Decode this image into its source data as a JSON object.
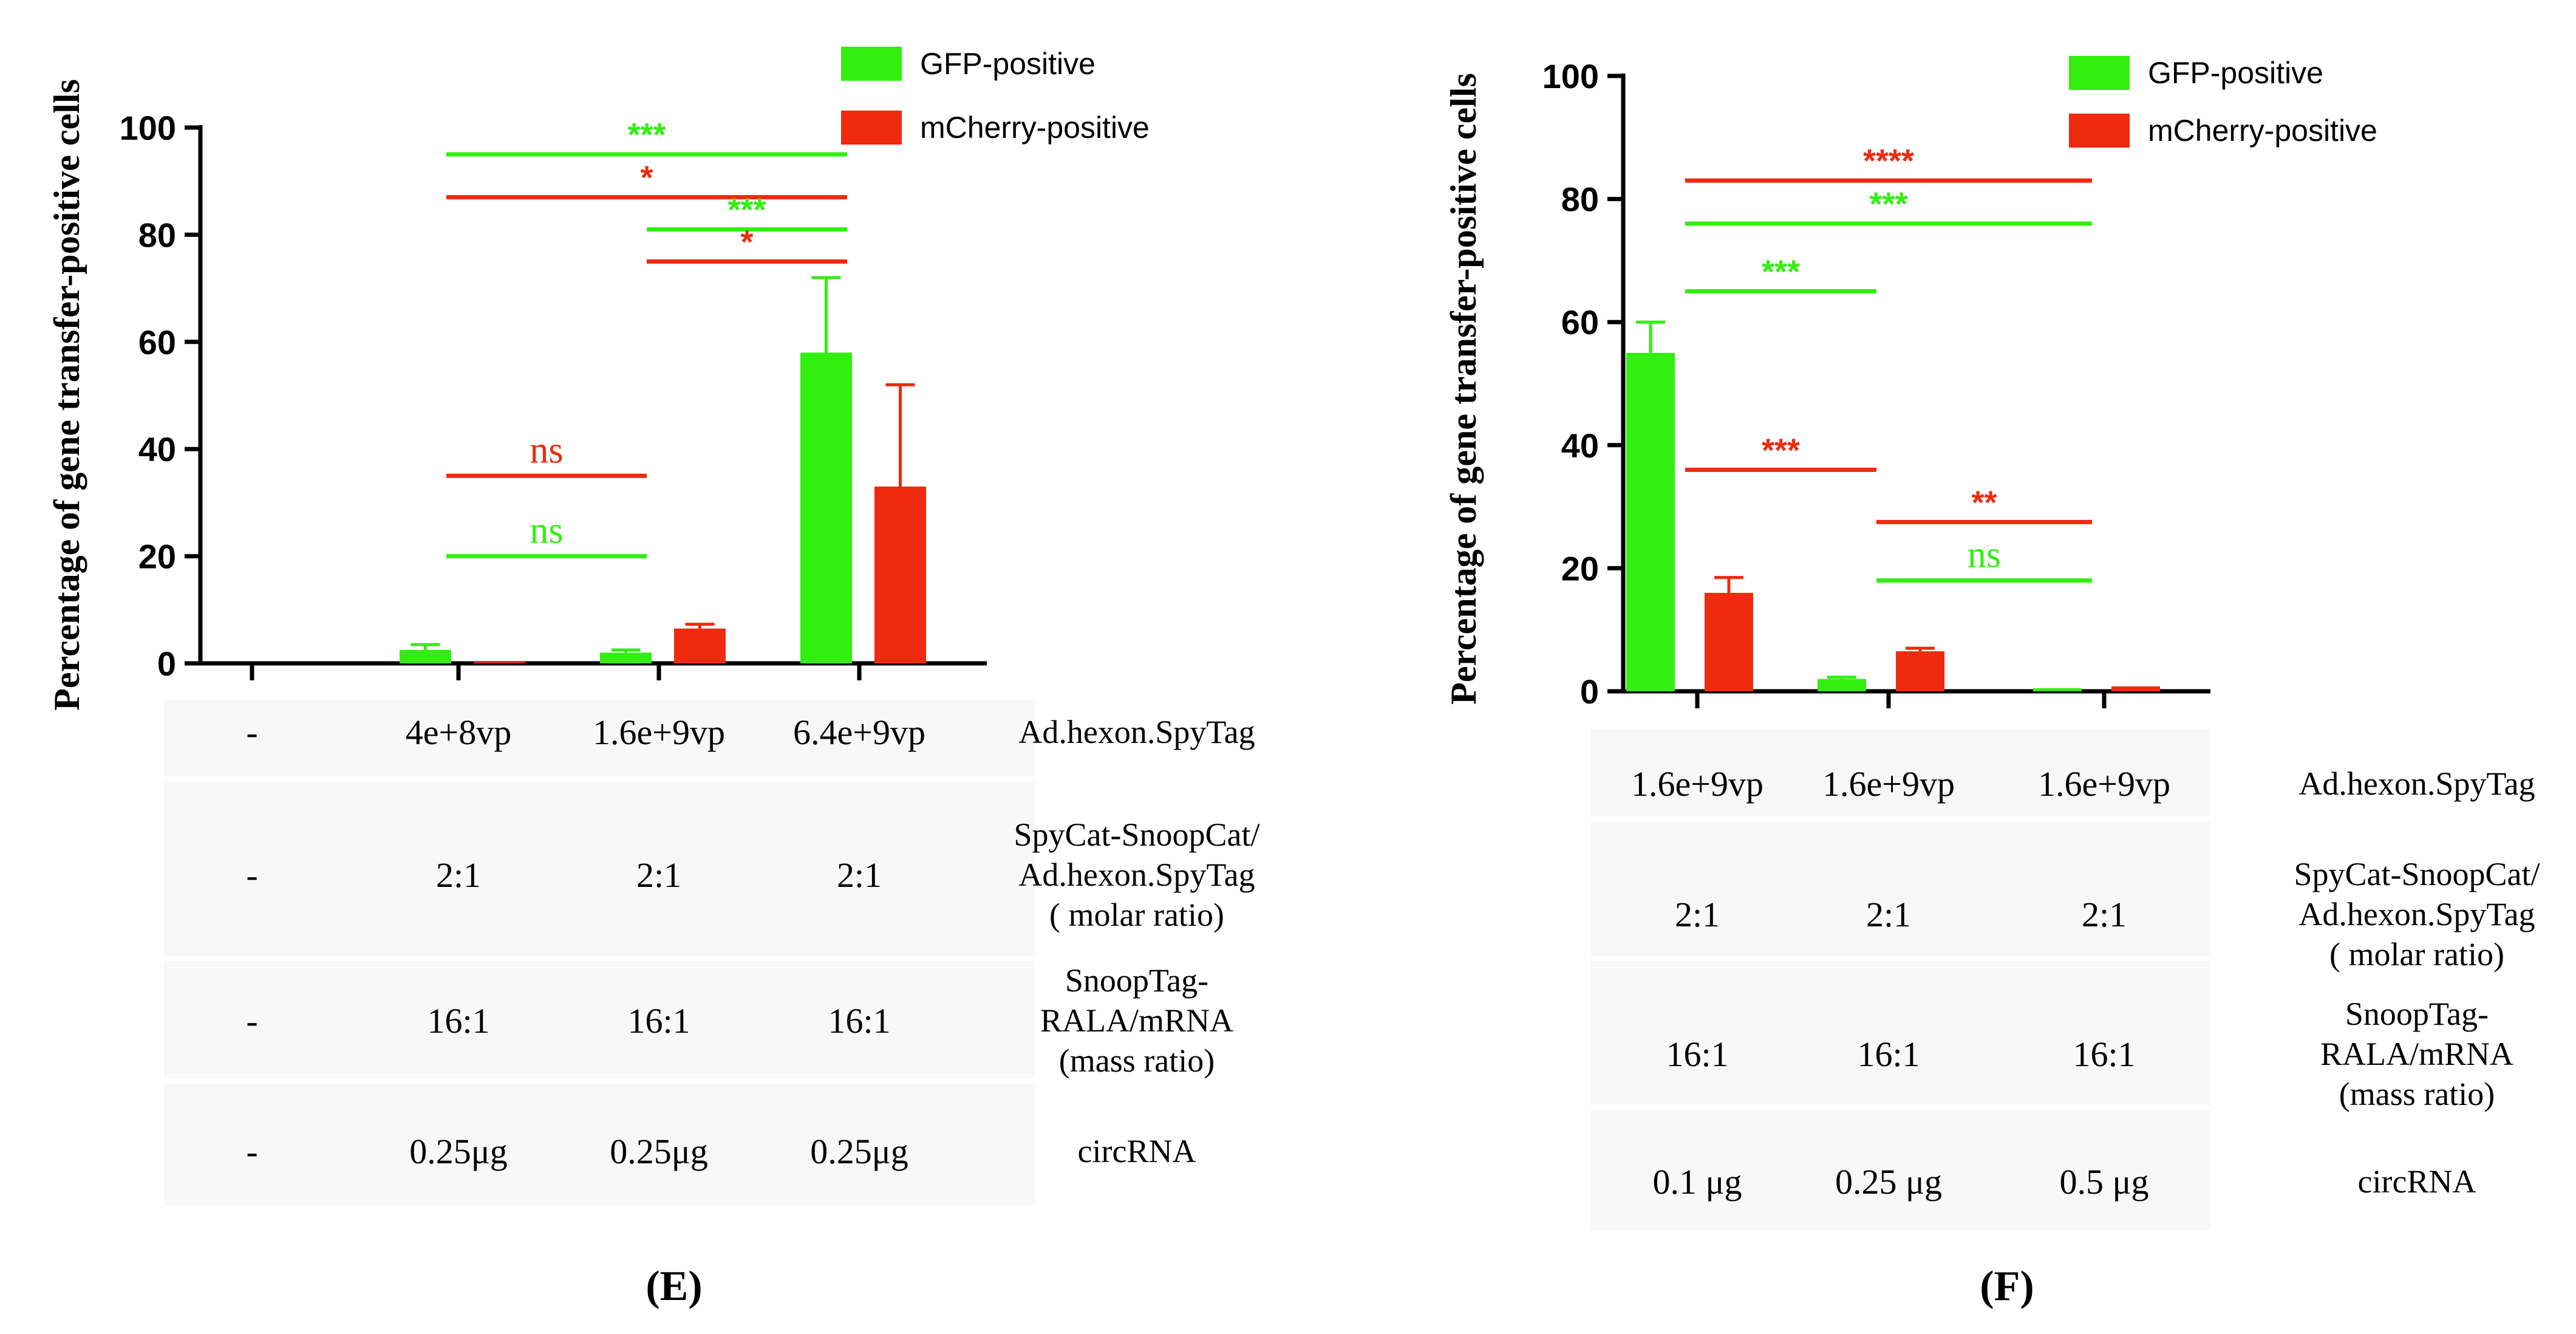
{
  "colors": {
    "gfp": "#33ee11",
    "mcherry": "#ee2a0f",
    "axis": "#000000",
    "table_bg": "#f8f8f8"
  },
  "chart_data": [
    {
      "panel": "(E)",
      "type": "bar",
      "ylabel": "Percentage of gene transfer-positive cells",
      "ylim": [
        0,
        100
      ],
      "yticks": [
        "0",
        "20",
        "40",
        "60",
        "80",
        "100"
      ],
      "legend": [
        "GFP-positive",
        "mCherry-positive"
      ],
      "series": [
        {
          "name": "GFP-positive",
          "values": [
            0,
            2.5,
            2,
            58
          ],
          "errors": [
            0,
            1,
            0.5,
            14
          ]
        },
        {
          "name": "mCherry-positive",
          "values": [
            0,
            0.3,
            6.5,
            33
          ],
          "errors": [
            0,
            0,
            0.8,
            19
          ]
        }
      ],
      "significance": [
        {
          "label": "***",
          "color": "gfp",
          "from": 1,
          "to": 3,
          "y": 95
        },
        {
          "label": "*",
          "color": "mcherry",
          "from": 1,
          "to": 3,
          "y": 87
        },
        {
          "label": "***",
          "color": "gfp",
          "from": 2,
          "to": 3,
          "y": 81
        },
        {
          "label": "*",
          "color": "mcherry",
          "from": 2,
          "to": 3,
          "y": 75
        },
        {
          "label": "ns",
          "color": "mcherry",
          "from": 1,
          "to": 2,
          "y": 35
        },
        {
          "label": "ns",
          "color": "gfp",
          "from": 1,
          "to": 2,
          "y": 20
        }
      ],
      "rows": [
        {
          "name": "Ad.hexon.SpyTag",
          "values": [
            "-",
            "4e+8vp",
            "1.6e+9vp",
            "6.4e+9vp"
          ]
        },
        {
          "name": "SpyCat-SnoopCat/\nAd.hexon.SpyTag\n( molar ratio)",
          "values": [
            "-",
            "2:1",
            "2:1",
            "2:1"
          ]
        },
        {
          "name": "SnoopTag-\nRALA/mRNA\n(mass ratio)",
          "values": [
            "-",
            "16:1",
            "16:1",
            "16:1"
          ]
        },
        {
          "name": "circRNA",
          "values": [
            "-",
            "0.25μg",
            "0.25μg",
            "0.25μg"
          ]
        }
      ]
    },
    {
      "panel": "(F)",
      "type": "bar",
      "ylabel": "Percentage of gene transfer-positive cells",
      "ylim": [
        0,
        100
      ],
      "yticks": [
        "0",
        "20",
        "40",
        "60",
        "80",
        "100"
      ],
      "legend": [
        "GFP-positive",
        "mCherry-positive"
      ],
      "series": [
        {
          "name": "GFP-positive",
          "values": [
            55,
            2,
            0.5
          ],
          "errors": [
            5,
            0.3,
            0
          ]
        },
        {
          "name": "mCherry-positive",
          "values": [
            16,
            6.5,
            0.8
          ],
          "errors": [
            2.5,
            0.5,
            0
          ]
        }
      ],
      "significance": [
        {
          "label": "****",
          "color": "mcherry",
          "from": 0,
          "to": 2,
          "y": 83
        },
        {
          "label": "***",
          "color": "gfp",
          "from": 0,
          "to": 2,
          "y": 76
        },
        {
          "label": "***",
          "color": "gfp",
          "from": 0,
          "to": 1,
          "y": 65
        },
        {
          "label": "***",
          "color": "mcherry",
          "from": 0,
          "to": 1,
          "y": 36
        },
        {
          "label": "**",
          "color": "mcherry",
          "from": 1,
          "to": 2,
          "y": 27.5
        },
        {
          "label": "ns",
          "color": "gfp",
          "from": 1,
          "to": 2,
          "y": 18
        }
      ],
      "rows": [
        {
          "name": "Ad.hexon.SpyTag",
          "values": [
            "1.6e+9vp",
            "1.6e+9vp",
            "1.6e+9vp"
          ]
        },
        {
          "name": "SpyCat-SnoopCat/\nAd.hexon.SpyTag\n( molar ratio)",
          "values": [
            "2:1",
            "2:1",
            "2:1"
          ]
        },
        {
          "name": "SnoopTag-\nRALA/mRNA\n(mass ratio)",
          "values": [
            "16:1",
            "16:1",
            "16:1"
          ]
        },
        {
          "name": "circRNA",
          "values": [
            "0.1 μg",
            "0.25 μg",
            "0.5 μg"
          ]
        }
      ]
    }
  ]
}
